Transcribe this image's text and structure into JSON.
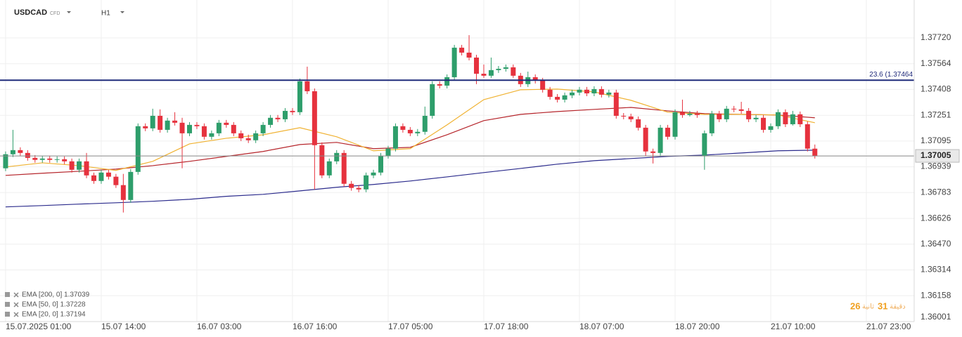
{
  "header": {
    "symbol": "USDCAD",
    "kind": "CFD",
    "timeframe": "H1"
  },
  "countdown": {
    "seconds": "26",
    "seconds_label": "ثانية",
    "minutes": "31",
    "minutes_label": "دقيقة"
  },
  "chart_data": {
    "type": "candlestick",
    "xlim": [
      -0.76,
      123.5
    ],
    "ylim": [
      1.36001,
      1.3795
    ],
    "xticks": [
      {
        "value": 0,
        "label": "15.07.2025 01:00"
      },
      {
        "value": 13,
        "label": "15.07 14:00"
      },
      {
        "value": 26,
        "label": "16.07 03:00"
      },
      {
        "value": 39,
        "label": "16.07 16:00"
      },
      {
        "value": 52,
        "label": "17.07 05:00"
      },
      {
        "value": 65,
        "label": "17.07 18:00"
      },
      {
        "value": 78,
        "label": "18.07 07:00"
      },
      {
        "value": 91,
        "label": "18.07 20:00"
      },
      {
        "value": 104,
        "label": "21.07 10:00"
      },
      {
        "value": 117,
        "label": "21.07 23:00"
      }
    ],
    "yticks": [
      {
        "value": 1.3772,
        "label": "1.37720"
      },
      1.37564,
      1.37408,
      1.37251,
      1.37095,
      1.36939,
      1.36783,
      1.36626,
      {
        "value": 1.3647,
        "label": "1.36470"
      },
      1.36314,
      1.36158,
      1.36001
    ],
    "grid": true,
    "last_price": 1.37005,
    "fib_level": {
      "value": 1.37464,
      "label": "23.6 (1.37464",
      "color": "#1f2a7a"
    },
    "candles": {
      "up_color": "#2e9e6b",
      "down_color": "#e6323e",
      "open": [
        1.3693,
        1.37015,
        1.3704,
        1.37023,
        1.36993,
        1.36981,
        1.36989,
        1.36981,
        1.36985,
        1.36972,
        1.36921,
        1.36972,
        1.36887,
        1.36853,
        1.36904,
        1.36879,
        1.36828,
        1.36738,
        1.36908,
        1.37185,
        1.37172,
        1.37248,
        1.37163,
        1.37219,
        1.37206,
        1.37142,
        1.37193,
        1.37185,
        1.37121,
        1.37142,
        1.37206,
        1.37193,
        1.37142,
        1.37112,
        1.371,
        1.37142,
        1.37193,
        1.37236,
        1.37227,
        1.37278,
        1.3727,
        1.37457,
        1.37397,
        1.3707,
        1.36887,
        1.36972,
        1.37023,
        1.36836,
        1.36811,
        1.36802,
        1.36887,
        1.36904,
        1.37006,
        1.37049,
        1.37185,
        1.37163,
        1.37142,
        1.37151,
        1.37248,
        1.3744,
        1.37431,
        1.37482,
        1.37661,
        1.37631,
        1.37601,
        1.37503,
        1.37491,
        1.37525,
        1.37533,
        1.37542,
        1.37491,
        1.3744,
        1.37482,
        1.37461,
        1.37406,
        1.37363,
        1.37346,
        1.37372,
        1.37389,
        1.37406,
        1.37384,
        1.3741,
        1.37376,
        1.37389,
        1.37248,
        1.37244,
        1.37227,
        1.37176,
        1.37032,
        1.37023,
        1.37176,
        1.37121,
        1.3727,
        1.37253,
        1.37261,
        1.37006,
        1.37142,
        1.37261,
        1.37227,
        1.37291,
        1.37287,
        1.37278,
        1.37227,
        1.37236,
        1.37163,
        1.37185,
        1.3727,
        1.37197,
        1.37257,
        1.37197,
        1.37049
      ],
      "high": [
        1.37032,
        1.37163,
        1.37057,
        1.3704,
        1.3701,
        1.37006,
        1.37006,
        1.37002,
        1.37002,
        1.36989,
        1.36989,
        1.37023,
        1.36904,
        1.36921,
        1.36921,
        1.36896,
        1.36896,
        1.36925,
        1.37202,
        1.37202,
        1.37291,
        1.37287,
        1.37236,
        1.3727,
        1.37236,
        1.3721,
        1.3721,
        1.37202,
        1.37159,
        1.37223,
        1.37223,
        1.3721,
        1.37159,
        1.37134,
        1.37159,
        1.3721,
        1.37253,
        1.37253,
        1.37295,
        1.37295,
        1.37474,
        1.37546,
        1.37414,
        1.37087,
        1.36989,
        1.3704,
        1.3704,
        1.36853,
        1.36828,
        1.36904,
        1.36921,
        1.37023,
        1.37066,
        1.37202,
        1.37202,
        1.3718,
        1.37168,
        1.37304,
        1.37457,
        1.37457,
        1.37499,
        1.37678,
        1.37678,
        1.37737,
        1.37618,
        1.37559,
        1.37601,
        1.3755,
        1.37559,
        1.37559,
        1.37508,
        1.37516,
        1.37499,
        1.37478,
        1.37423,
        1.3738,
        1.37389,
        1.37406,
        1.37423,
        1.37423,
        1.37427,
        1.37427,
        1.37406,
        1.37406,
        1.37265,
        1.37261,
        1.37244,
        1.37193,
        1.37049,
        1.37193,
        1.37193,
        1.37287,
        1.37346,
        1.37278,
        1.37278,
        1.37159,
        1.37278,
        1.37278,
        1.37308,
        1.37308,
        1.37333,
        1.37295,
        1.37253,
        1.37253,
        1.37202,
        1.37287,
        1.37287,
        1.37278,
        1.37274,
        1.37214,
        1.37074
      ],
      "low": [
        1.36913,
        1.36998,
        1.37006,
        1.36976,
        1.36964,
        1.36964,
        1.36964,
        1.36964,
        1.36955,
        1.36904,
        1.36904,
        1.3687,
        1.36836,
        1.36836,
        1.36862,
        1.36811,
        1.36662,
        1.36721,
        1.36891,
        1.37155,
        1.37155,
        1.37146,
        1.37146,
        1.37189,
        1.3693,
        1.37125,
        1.37168,
        1.37104,
        1.37104,
        1.37125,
        1.37176,
        1.37125,
        1.37095,
        1.37083,
        1.37083,
        1.37125,
        1.37176,
        1.3721,
        1.3721,
        1.37253,
        1.37253,
        1.3738,
        1.36802,
        1.3687,
        1.3687,
        1.36955,
        1.36819,
        1.36794,
        1.36785,
        1.36785,
        1.3687,
        1.36887,
        1.36989,
        1.37032,
        1.37146,
        1.37125,
        1.37125,
        1.37134,
        1.37231,
        1.37414,
        1.37414,
        1.37465,
        1.37614,
        1.37584,
        1.3744,
        1.37478,
        1.37478,
        1.37508,
        1.37516,
        1.37478,
        1.37423,
        1.37423,
        1.37444,
        1.37389,
        1.37346,
        1.37329,
        1.37329,
        1.37355,
        1.37372,
        1.37367,
        1.37367,
        1.37359,
        1.37359,
        1.37231,
        1.37227,
        1.3721,
        1.37159,
        1.37006,
        1.36959,
        1.37006,
        1.37104,
        1.37104,
        1.37236,
        1.37244,
        1.37236,
        1.36921,
        1.37125,
        1.3721,
        1.3721,
        1.3727,
        1.37261,
        1.3721,
        1.3721,
        1.37146,
        1.37146,
        1.37168,
        1.3718,
        1.37189,
        1.3718,
        1.37032,
        1.36989
      ],
      "close": [
        1.37015,
        1.3704,
        1.37023,
        1.36993,
        1.36981,
        1.36989,
        1.36981,
        1.36985,
        1.36972,
        1.36921,
        1.36972,
        1.36887,
        1.36853,
        1.36904,
        1.36879,
        1.36828,
        1.36738,
        1.36908,
        1.37185,
        1.37172,
        1.37248,
        1.37163,
        1.37219,
        1.37206,
        1.37142,
        1.37193,
        1.37185,
        1.37121,
        1.37142,
        1.37206,
        1.37193,
        1.37142,
        1.37112,
        1.371,
        1.37142,
        1.37193,
        1.37236,
        1.37227,
        1.37278,
        1.3727,
        1.37457,
        1.37397,
        1.3707,
        1.36887,
        1.36972,
        1.37023,
        1.36836,
        1.36811,
        1.36802,
        1.36887,
        1.36904,
        1.37006,
        1.37049,
        1.37185,
        1.37163,
        1.37142,
        1.37151,
        1.37248,
        1.3744,
        1.37431,
        1.37482,
        1.37661,
        1.37631,
        1.37601,
        1.37503,
        1.37491,
        1.37525,
        1.37533,
        1.37542,
        1.37491,
        1.3744,
        1.37482,
        1.37461,
        1.37406,
        1.37363,
        1.37346,
        1.37372,
        1.37389,
        1.37406,
        1.37384,
        1.3741,
        1.37376,
        1.37389,
        1.37248,
        1.37244,
        1.37227,
        1.37176,
        1.37032,
        1.37023,
        1.37176,
        1.37121,
        1.3727,
        1.37253,
        1.37261,
        1.37253,
        1.37142,
        1.37261,
        1.37227,
        1.37291,
        1.37287,
        1.37278,
        1.37227,
        1.37236,
        1.37163,
        1.37185,
        1.3727,
        1.37197,
        1.37257,
        1.37197,
        1.37049,
        1.37005
      ]
    },
    "series": [
      {
        "name": "EMA [200, 0] 1.37039",
        "color": "#2b2b8c",
        "x": [
          0,
          5,
          10,
          15,
          20,
          25,
          30,
          35,
          40,
          45,
          50,
          55,
          60,
          65,
          70,
          75,
          80,
          85,
          90,
          95,
          100,
          105,
          110
        ],
        "values": [
          1.36696,
          1.36704,
          1.36713,
          1.36721,
          1.3673,
          1.36742,
          1.3676,
          1.36772,
          1.36793,
          1.36815,
          1.36832,
          1.36853,
          1.36878,
          1.36904,
          1.36929,
          1.36955,
          1.36976,
          1.36989,
          1.37002,
          1.3701,
          1.37023,
          1.37036,
          1.3704
        ]
      },
      {
        "name": "EMA [50, 0] 1.37228",
        "color": "#b5242a",
        "x": [
          0,
          5,
          10,
          15,
          20,
          25,
          30,
          35,
          40,
          45,
          50,
          55,
          60,
          65,
          70,
          75,
          80,
          85,
          90,
          95,
          100,
          105,
          110
        ],
        "values": [
          1.36887,
          1.369,
          1.36912,
          1.36925,
          1.36946,
          1.36972,
          1.37002,
          1.37032,
          1.37074,
          1.37087,
          1.37049,
          1.37057,
          1.37133,
          1.37219,
          1.37257,
          1.37274,
          1.37287,
          1.37299,
          1.37278,
          1.37261,
          1.37257,
          1.37253,
          1.37236
        ]
      },
      {
        "name": "EMA [20, 0] 1.37194",
        "color": "#f0b232",
        "x": [
          0,
          5,
          10,
          15,
          20,
          25,
          30,
          35,
          40,
          45,
          50,
          55,
          60,
          65,
          70,
          75,
          80,
          85,
          90,
          95,
          100,
          105,
          110
        ],
        "values": [
          1.36938,
          1.36963,
          1.36946,
          1.36917,
          1.36972,
          1.37078,
          1.37112,
          1.37133,
          1.37176,
          1.37121,
          1.37036,
          1.37049,
          1.37193,
          1.37346,
          1.37406,
          1.3741,
          1.37393,
          1.37342,
          1.3727,
          1.37257,
          1.37257,
          1.37253,
          1.37206
        ]
      }
    ]
  }
}
